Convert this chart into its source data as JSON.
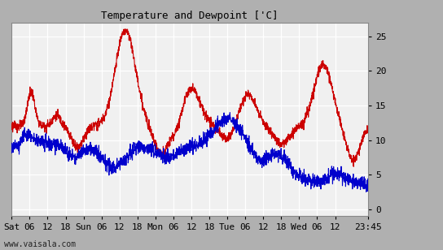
{
  "title": "Temperature and Dewpoint ['C]",
  "ylim": [
    -1,
    27
  ],
  "yticks": [
    0,
    5,
    10,
    15,
    20,
    25
  ],
  "figure_bg": "#b0b0b0",
  "plot_bg": "#f0f0f0",
  "grid_color": "#ffffff",
  "temp_color": "#cc0000",
  "dew_color": "#0000cc",
  "line_width": 0.8,
  "x_labels": [
    "Sat",
    "06",
    "12",
    "18",
    "Sun",
    "06",
    "12",
    "18",
    "Mon",
    "06",
    "12",
    "18",
    "Tue",
    "06",
    "12",
    "18",
    "Wed",
    "06",
    "12",
    "23:45"
  ],
  "x_positions": [
    0,
    6,
    12,
    18,
    24,
    30,
    36,
    42,
    48,
    54,
    60,
    66,
    72,
    78,
    84,
    90,
    96,
    102,
    108,
    119
  ],
  "total_hours": 119,
  "footer_text": "www.vaisala.com",
  "title_fontsize": 9,
  "tick_fontsize": 8
}
